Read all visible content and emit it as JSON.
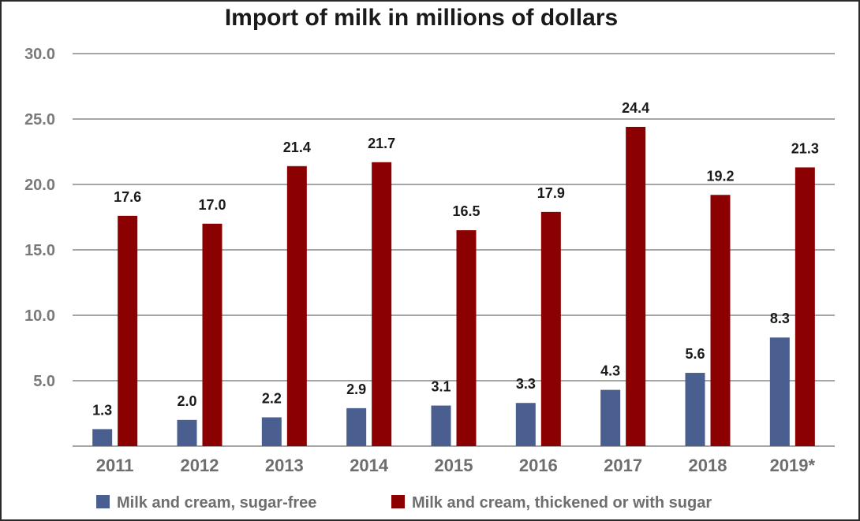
{
  "chart_data": {
    "type": "bar",
    "title": "Import of milk in millions of dollars",
    "categories": [
      "2011",
      "2012",
      "2013",
      "2014",
      "2015",
      "2016",
      "2017",
      "2018",
      "2019*"
    ],
    "series": [
      {
        "name": "Milk and cream, sugar-free",
        "color": "#4a5f8f",
        "values": [
          1.3,
          2.0,
          2.2,
          2.9,
          3.1,
          3.3,
          4.3,
          5.6,
          8.3
        ],
        "labels": [
          "1.3",
          "2.0",
          "2.2",
          "2.9",
          "3.1",
          "3.3",
          "4.3",
          "5.6",
          "8.3"
        ]
      },
      {
        "name": "Milk and cream, thickened or with sugar",
        "color": "#8b0000",
        "values": [
          17.6,
          17.0,
          21.4,
          21.7,
          16.5,
          17.9,
          24.4,
          19.2,
          21.3
        ],
        "labels": [
          "17.6",
          "17.0",
          "21.4",
          "21.7",
          "16.5",
          "17.9",
          "24.4",
          "19.2",
          "21.3"
        ]
      }
    ],
    "ylim": [
      0,
      30
    ],
    "yticks": [
      "30.0",
      "25.0",
      "20.0",
      "15.0",
      "10.0",
      "5.0"
    ],
    "ytick_values": [
      30,
      25,
      20,
      15,
      10,
      5
    ],
    "grid": true,
    "legend": "bottom",
    "xlabel": "",
    "ylabel": ""
  }
}
